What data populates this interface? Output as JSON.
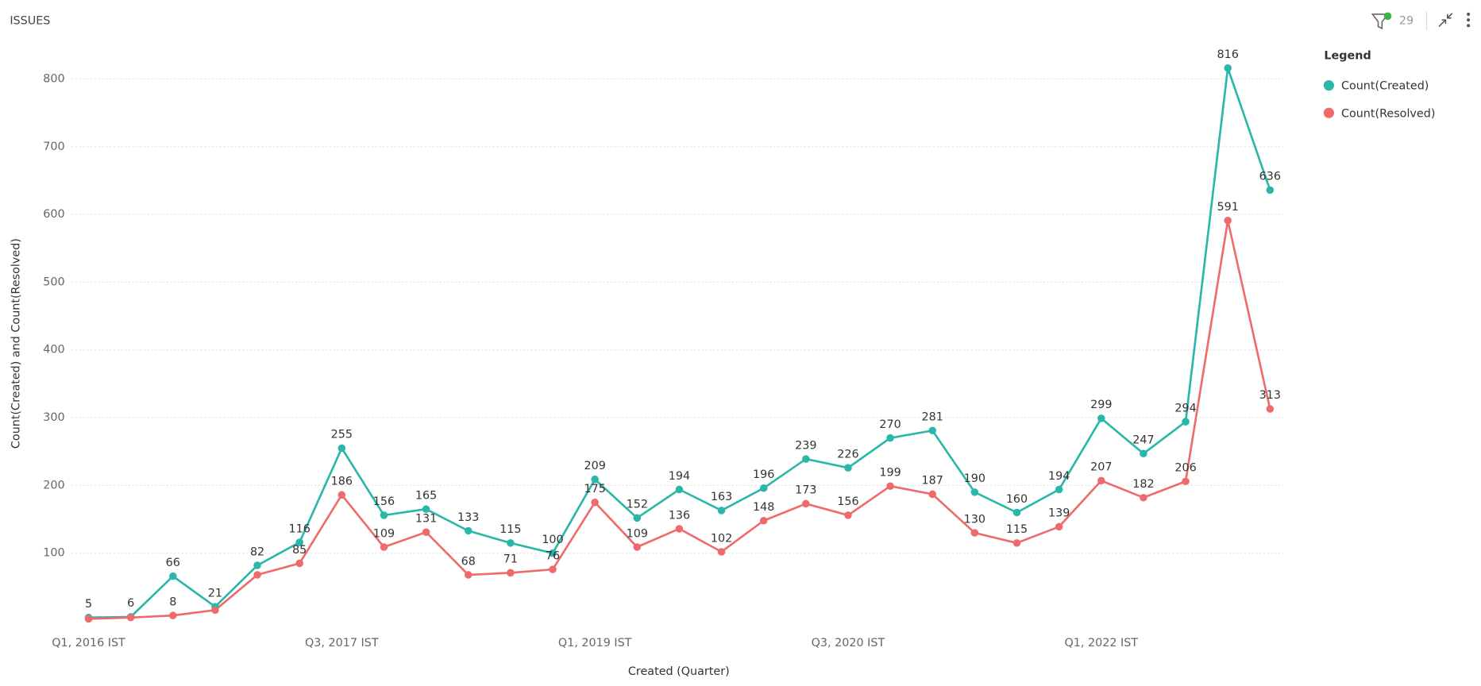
{
  "header": {
    "title": "ISSUES",
    "filter_count": 29
  },
  "chart_data": {
    "type": "line",
    "x_label": "Created (Quarter)",
    "y_label": "Count(Created) and Count(Resolved)",
    "legend_title": "Legend",
    "legend": "right",
    "grid": true,
    "categories": [
      "Q1, 2016 IST",
      null,
      null,
      null,
      null,
      null,
      "Q3, 2017 IST",
      null,
      null,
      null,
      null,
      null,
      "Q1, 2019 IST",
      null,
      null,
      null,
      null,
      null,
      "Q3, 2020 IST",
      null,
      null,
      null,
      null,
      null,
      "Q1, 2022 IST",
      null,
      null,
      null,
      null
    ],
    "ylim": [
      0,
      850
    ],
    "yticks": [
      100,
      200,
      300,
      400,
      500,
      600,
      700,
      800
    ],
    "series": [
      {
        "name": "Count(Created)",
        "color": "#2ab7a9",
        "values": [
          5,
          6,
          66,
          21,
          82,
          116,
          255,
          156,
          165,
          133,
          115,
          100,
          209,
          152,
          194,
          163,
          196,
          239,
          226,
          270,
          281,
          190,
          160,
          194,
          299,
          247,
          294,
          816,
          636
        ],
        "value_labels": [
          "5",
          "6",
          "66",
          "21",
          "82",
          "116",
          "255",
          "156",
          "165",
          "133",
          "115",
          "100",
          "209",
          "152",
          "194",
          "163",
          "196",
          "239",
          "226",
          "270",
          "281",
          "190",
          "160",
          "194",
          "299",
          "247",
          "294",
          "816",
          "636"
        ]
      },
      {
        "name": "Count(Resolved)",
        "color": "#ef6b6b",
        "values": [
          3,
          5,
          8,
          16,
          68,
          85,
          186,
          109,
          131,
          68,
          71,
          76,
          175,
          109,
          136,
          102,
          148,
          173,
          156,
          199,
          187,
          130,
          115,
          139,
          207,
          182,
          206,
          591,
          313
        ],
        "value_labels": [
          null,
          null,
          "8",
          null,
          null,
          "85",
          "186",
          "109",
          "131",
          "68",
          "71",
          "76",
          "175",
          "109",
          "136",
          "102",
          "148",
          "173",
          "156",
          "199",
          "187",
          "130",
          "115",
          "139",
          "207",
          "182",
          "206",
          "591",
          "313"
        ]
      }
    ]
  }
}
